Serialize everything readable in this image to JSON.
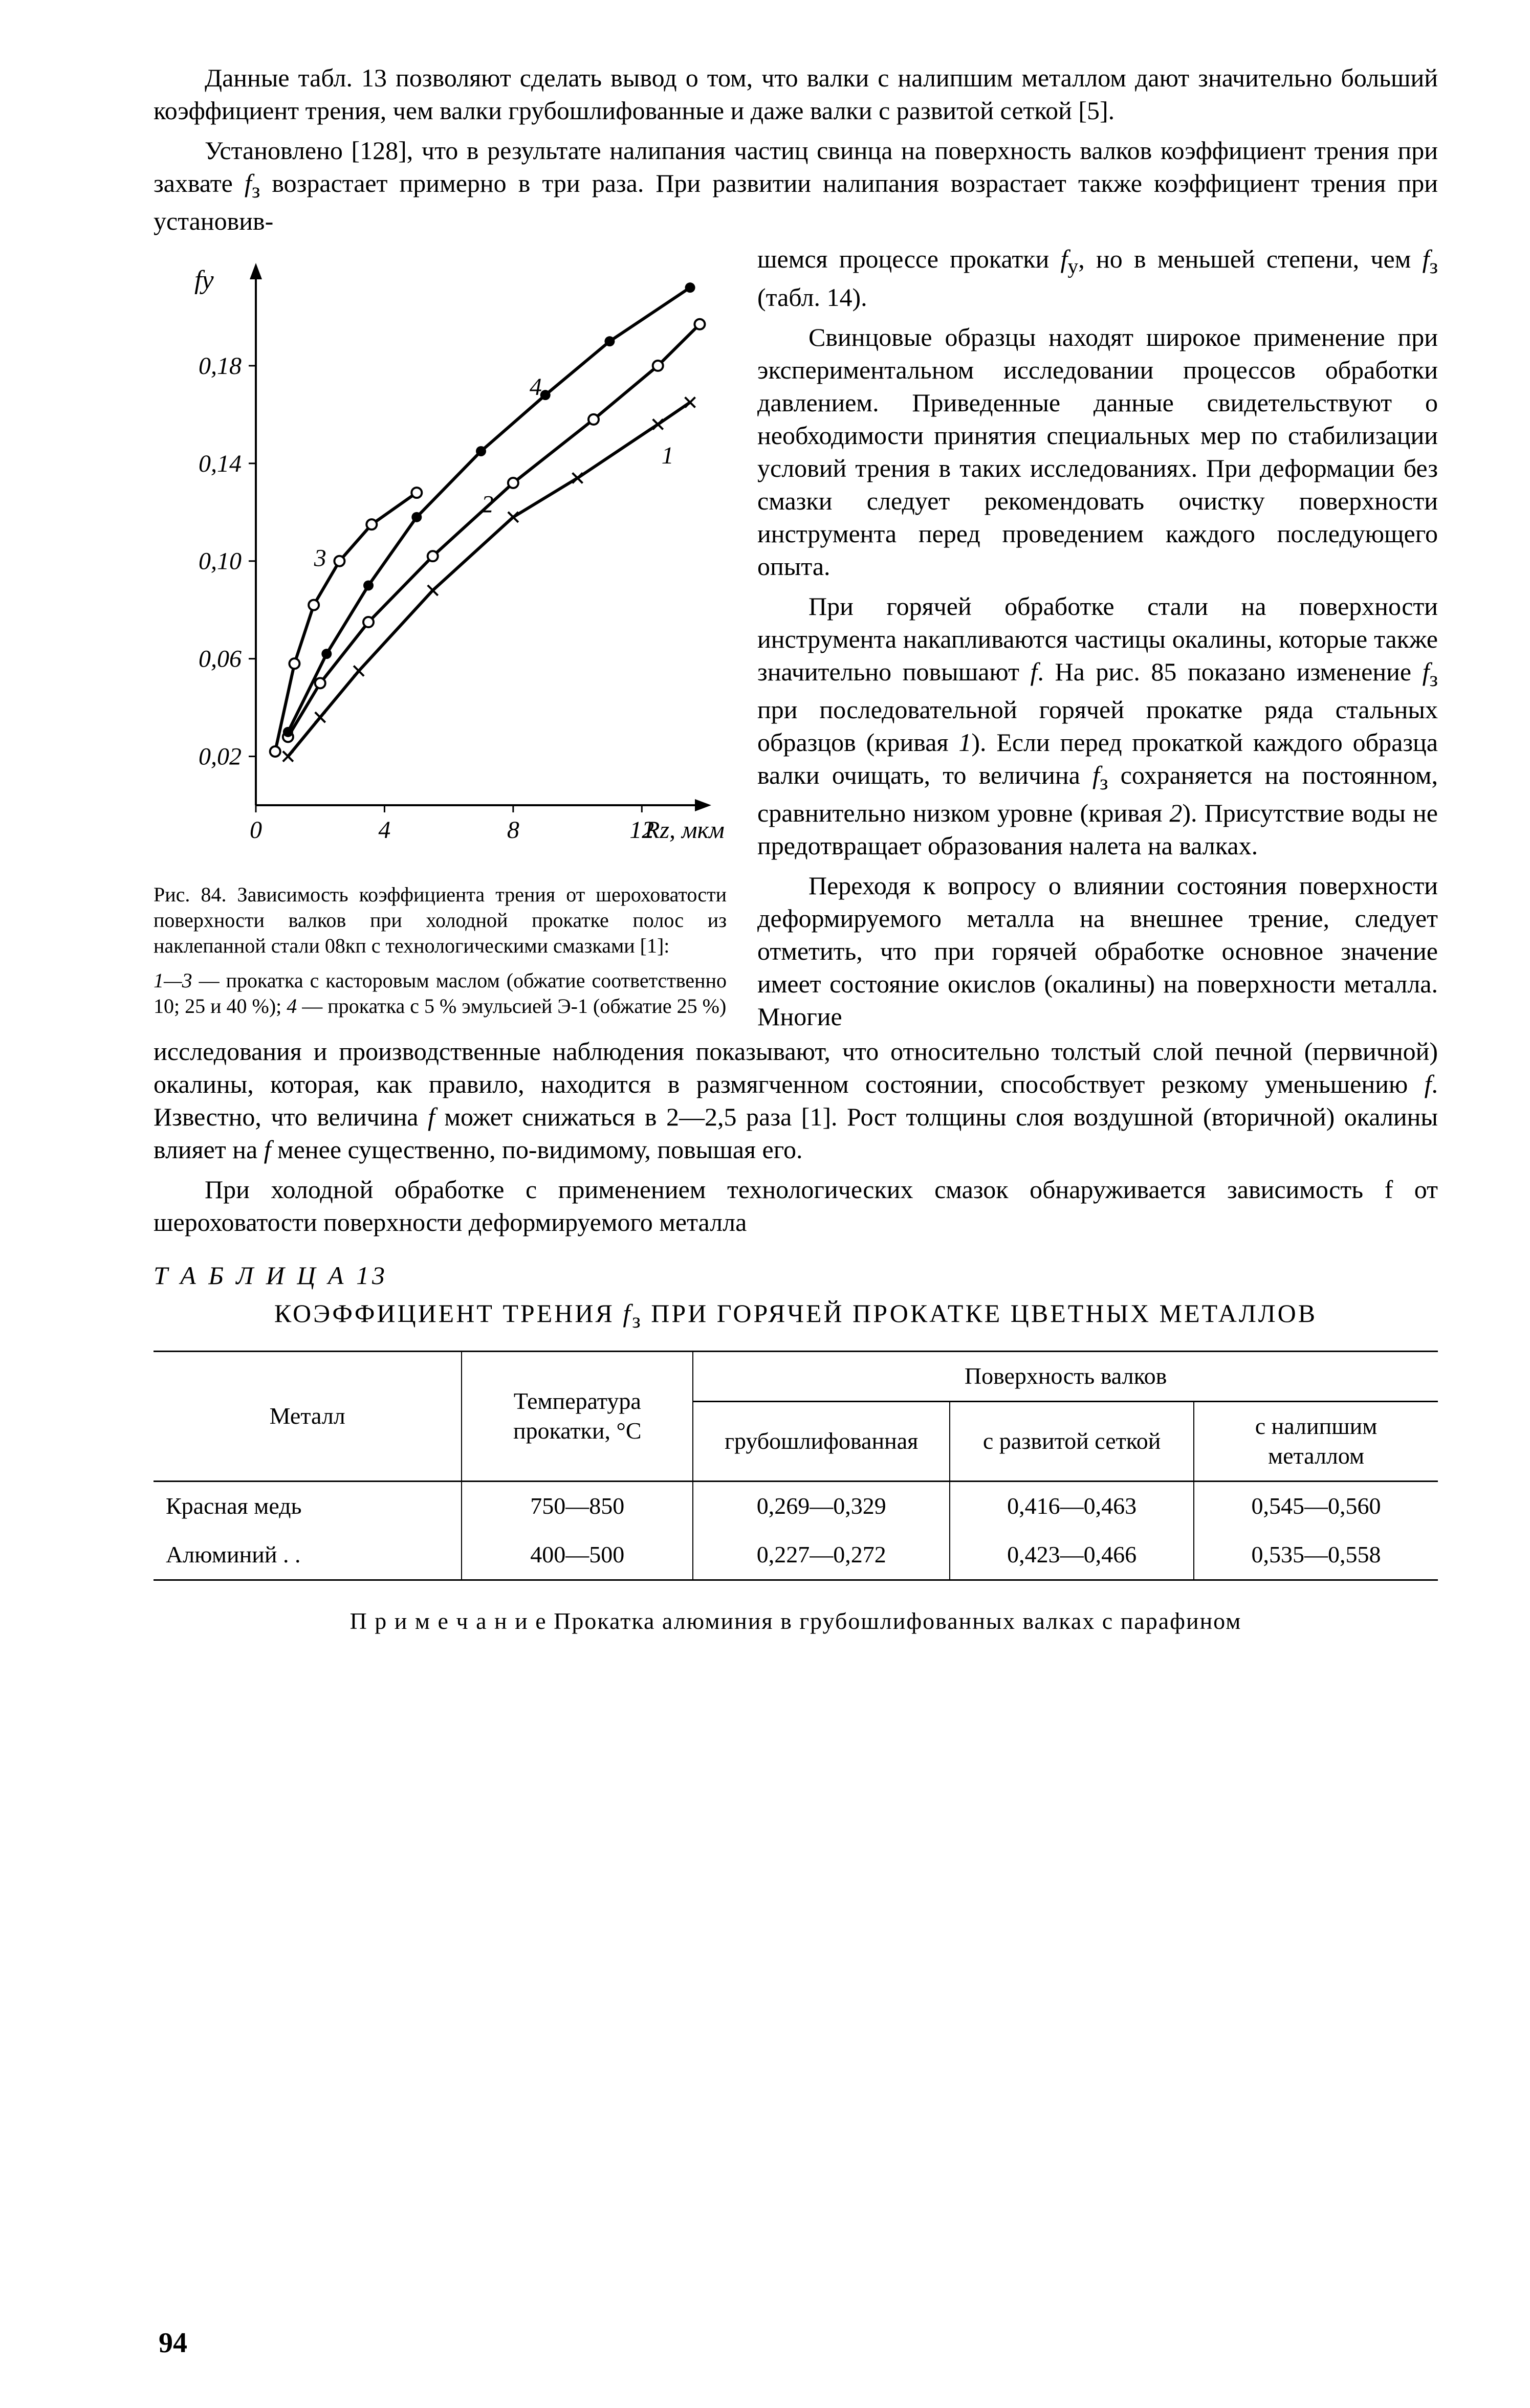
{
  "page_number": "94",
  "paragraphs": {
    "p1": "Данные табл. 13 позволяют сделать вывод о том, что валки с налипшим металлом дают значительно больший коэффициент трения, чем валки грубошлифованные и даже валки с развитой сеткой [5].",
    "p2": "Установлено [128], что в результате налипания частиц свинца на поверхность валков коэффициент трения при захвате fз возрастает примерно в три раза. При развитии налипания возрастает также коэффициент трения при установившемся процессе прокатки fу, но в меньшей степени, чем fз (табл. 14).",
    "r1": "шемся процессе прокатки fу, но в меньшей степени, чем fз (табл. 14).",
    "r2": "Свинцовые образцы находят широкое применение при экспериментальном исследовании процессов обработки давлением. Приведенные данные свидетельствуют о необходимости принятия специальных мер по стабилизации условий трения в таких исследованиях. При деформации без смазки следует рекомендовать очистку поверхности инструмента перед проведением каждого последующего опыта.",
    "r3": "При горячей обработке стали на поверхности инструмента накапливаются частицы окалины, которые также значительно повышают f. На рис. 85 показано изменение fз при последовательной горячей прокатке ряда стальных образцов (кривая 1). Если перед прокаткой каждого образца валки очищать, то величина fз сохраняется на постоянном, сравнительно низком уровне (кривая 2). Присутствие воды не предотвращает образования налета на валках.",
    "r4": "Переходя к вопросу о влиянии состояния поверхности деформируемого металла на внешнее трение, следует отметить, что при горячей обработке основное значение имеет состояние окислов (окалины) на поверхности металла. Многие",
    "p_after": "исследования и производственные наблюдения показывают, что относительно толстый слой печной (первичной) окалины, которая, как правило, находится в размягченном состоянии, способствует резкому уменьшению f. Известно, что величина f может снижаться в 2—2,5 раза [1]. Рост толщины слоя воздушной (вторичной) окалины влияет на f менее существенно, по-видимому, повышая его.",
    "p_last": "При холодной обработке с применением технологических смазок обнаруживается зависимость f от шероховатости поверхности деформируемого металла"
  },
  "figure": {
    "number_caption": "Рис. 84. Зависимость коэффициента трения от шероховатости поверхности валков при холодной прокатке полос из наклепанной стали 08кп с технологическими смазками [1]:",
    "legend": "1—3 — прокатка с касторовым маслом (обжатие соответственно 10; 25 и 40 %); 4 — прокатка с 5 % эмульсией Э-1 (обжатие 25 %)",
    "y_label": "fу",
    "x_label": "Rz, мкм",
    "y_ticks": [
      "0,02",
      "0,06",
      "0,10",
      "0,14",
      "0,18"
    ],
    "x_ticks": [
      "0",
      "4",
      "8",
      "12"
    ],
    "chart": {
      "type": "line",
      "xlim": [
        0,
        14
      ],
      "ylim": [
        0.0,
        0.22
      ],
      "line_width": 6,
      "axis_width": 4,
      "marker_size": 10,
      "background_color": "#ffffff",
      "axis_color": "#000000",
      "series": [
        {
          "id": "1",
          "label": "1",
          "marker": "x",
          "points": [
            [
              1.0,
              0.02
            ],
            [
              2.0,
              0.036
            ],
            [
              3.2,
              0.055
            ],
            [
              5.5,
              0.088
            ],
            [
              8.0,
              0.118
            ],
            [
              10.0,
              0.134
            ],
            [
              12.5,
              0.156
            ],
            [
              13.5,
              0.165
            ]
          ]
        },
        {
          "id": "2",
          "label": "2",
          "marker": "circle-open",
          "points": [
            [
              1.0,
              0.028
            ],
            [
              2.0,
              0.05
            ],
            [
              3.5,
              0.075
            ],
            [
              5.5,
              0.102
            ],
            [
              8.0,
              0.132
            ],
            [
              10.5,
              0.158
            ],
            [
              12.5,
              0.18
            ],
            [
              13.8,
              0.197
            ]
          ]
        },
        {
          "id": "3",
          "label": "3",
          "marker": "circle-open",
          "points": [
            [
              0.6,
              0.022
            ],
            [
              1.2,
              0.058
            ],
            [
              1.8,
              0.082
            ],
            [
              2.6,
              0.1
            ],
            [
              3.6,
              0.115
            ],
            [
              5.0,
              0.128
            ]
          ]
        },
        {
          "id": "4",
          "label": "4",
          "marker": "circle-filled",
          "points": [
            [
              1.0,
              0.03
            ],
            [
              2.2,
              0.062
            ],
            [
              3.5,
              0.09
            ],
            [
              5.0,
              0.118
            ],
            [
              7.0,
              0.145
            ],
            [
              9.0,
              0.168
            ],
            [
              11.0,
              0.19
            ],
            [
              13.5,
              0.212
            ]
          ]
        }
      ],
      "label_positions": {
        "1": [
          12.8,
          0.14
        ],
        "2": [
          7.2,
          0.12
        ],
        "3": [
          2.0,
          0.098
        ],
        "4": [
          8.7,
          0.168
        ]
      }
    }
  },
  "table": {
    "heading": "Т А Б Л И Ц А  13",
    "title": "КОЭФФИЦИЕНТ ТРЕНИЯ fз ПРИ ГОРЯЧЕЙ ПРОКАТКЕ ЦВЕТНЫХ МЕТАЛЛОВ",
    "columns": {
      "metal": "Металл",
      "temp": "Температура прокатки, °С",
      "surf_header": "Поверхность валков",
      "c1": "грубошлифованная",
      "c2": "с развитой сеткой",
      "c3": "с налипшим металлом"
    },
    "rows": [
      {
        "metal": "Красная медь",
        "temp": "750—850",
        "c1": "0,269—0,329",
        "c2": "0,416—0,463",
        "c3": "0,545—0,560"
      },
      {
        "metal": "Алюминий  . .",
        "temp": "400—500",
        "c1": "0,227—0,272",
        "c2": "0,423—0,466",
        "c3": "0,535—0,558"
      }
    ],
    "note": "П р и м е ч а н и е  Прокатка алюминия в грубошлифованных валках с парафином"
  }
}
